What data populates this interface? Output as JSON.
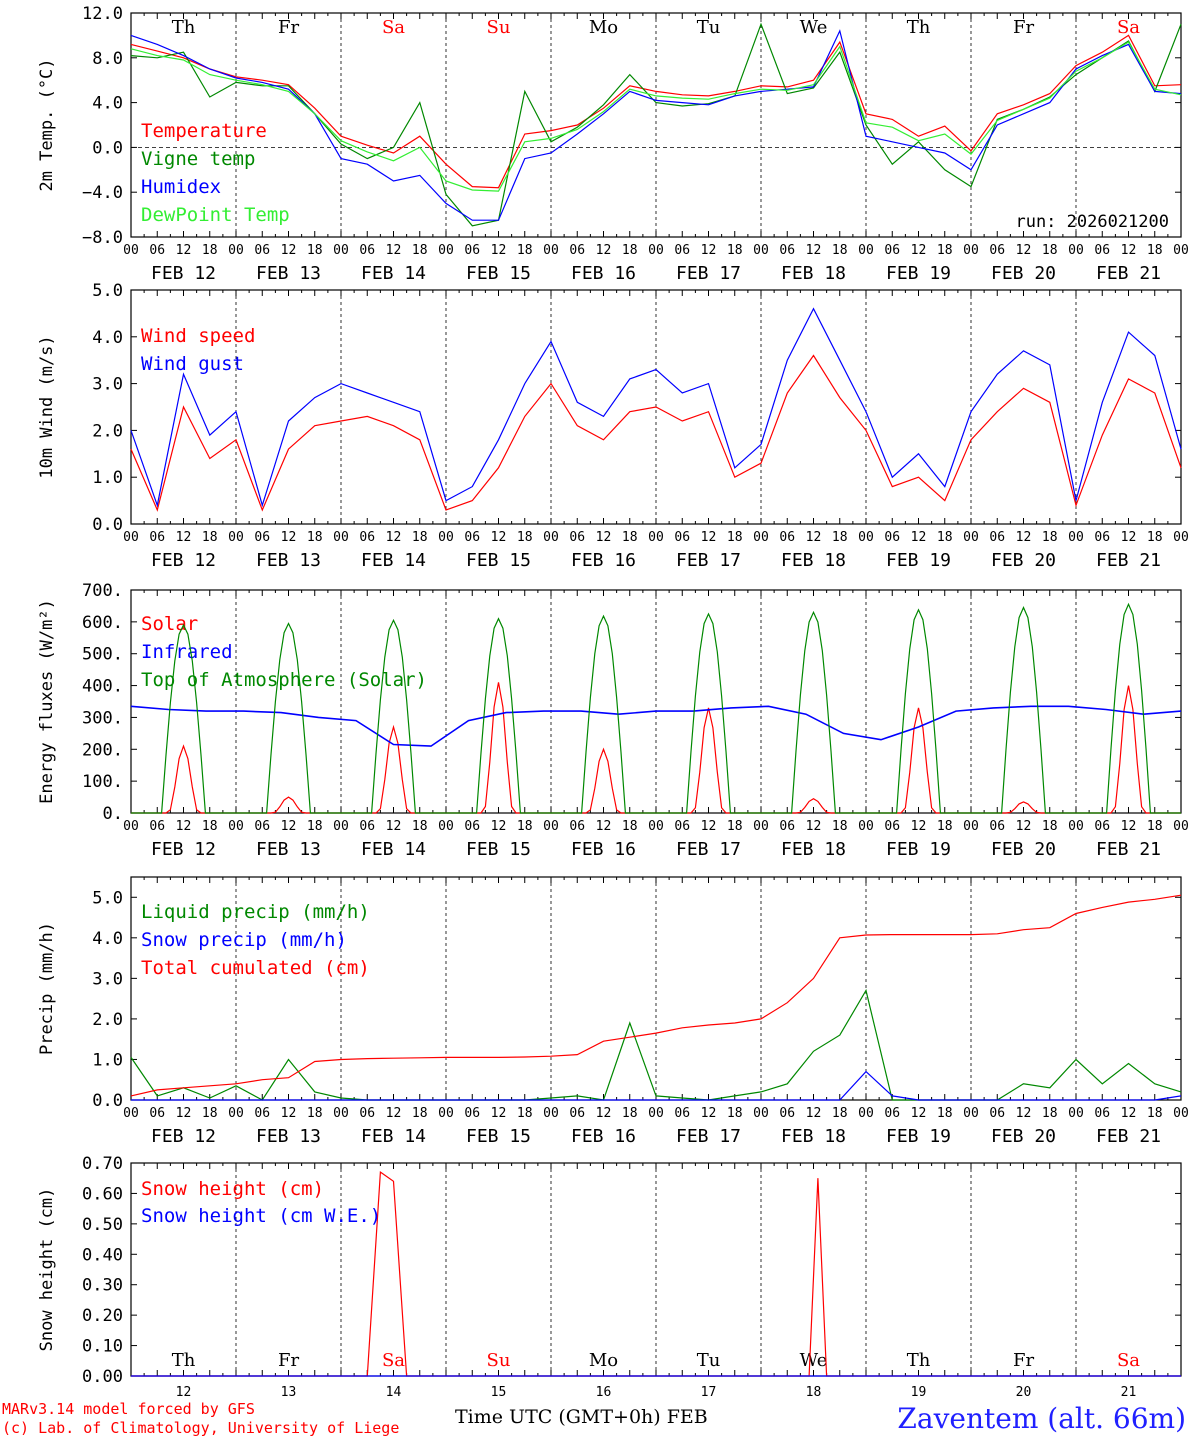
{
  "station": "Zaventem (alt. 66m)",
  "credit": [
    "MARv3.14 model forced by GFS",
    "(c) Lab. of Climatology, University of Liege"
  ],
  "run_label": "run: 2026021200",
  "x_axis_title": "Time UTC (GMT+0h) FEB",
  "days": [
    {
      "label": "Th",
      "date": "FEB 12",
      "num": "12",
      "weekend": false
    },
    {
      "label": "Fr",
      "date": "FEB 13",
      "num": "13",
      "weekend": false
    },
    {
      "label": "Sa",
      "date": "FEB 14",
      "num": "14",
      "weekend": true
    },
    {
      "label": "Su",
      "date": "FEB 15",
      "num": "15",
      "weekend": true
    },
    {
      "label": "Mo",
      "date": "FEB 16",
      "num": "16",
      "weekend": false
    },
    {
      "label": "Tu",
      "date": "FEB 17",
      "num": "17",
      "weekend": false
    },
    {
      "label": "We",
      "date": "FEB 18",
      "num": "18",
      "weekend": false
    },
    {
      "label": "Th",
      "date": "FEB 19",
      "num": "19",
      "weekend": false
    },
    {
      "label": "Fr",
      "date": "FEB 20",
      "num": "20",
      "weekend": false
    },
    {
      "label": "Sa",
      "date": "FEB 21",
      "num": "21",
      "weekend": true
    }
  ],
  "hour_ticks": [
    "00",
    "06",
    "12",
    "18"
  ],
  "colors": {
    "red": "#ff0000",
    "green": "#008800",
    "blue": "#0000ff",
    "lightgreen": "#33ee33",
    "weekend": "#ff0000"
  },
  "chart_data": [
    {
      "type": "line",
      "id": "temp",
      "ylabel": "2m Temp. (°C)",
      "ylim": [
        -8,
        12
      ],
      "yticks": [
        12,
        8,
        4,
        0,
        -4,
        -8
      ],
      "ytick_labels": [
        "12.0",
        "8.0",
        "4.0",
        "0.0",
        "−4.0",
        "−8.0"
      ],
      "zero_line": true,
      "x_hours": [
        0,
        6,
        12,
        18,
        24,
        30,
        36,
        42,
        48,
        54,
        60,
        66,
        72,
        78,
        84,
        90,
        96,
        102,
        108,
        114,
        120,
        126,
        132,
        138,
        144,
        150,
        156,
        162,
        168,
        174,
        180,
        186,
        192,
        198,
        204,
        210,
        216,
        222,
        228,
        234,
        240
      ],
      "series": [
        {
          "name": "Temperature",
          "color": "red",
          "values": [
            9.2,
            8.6,
            8.0,
            7.0,
            6.3,
            6.0,
            5.6,
            3.5,
            1.0,
            0.2,
            -0.5,
            1.0,
            -1.5,
            -3.5,
            -3.6,
            1.2,
            1.5,
            2.0,
            3.5,
            5.5,
            5.0,
            4.7,
            4.6,
            5.0,
            5.5,
            5.4,
            6.0,
            9.4,
            3.0,
            2.5,
            1.0,
            1.9,
            -0.3,
            3.0,
            3.8,
            4.8,
            7.3,
            8.5,
            10.0,
            5.5,
            5.6
          ]
        },
        {
          "name": "Vigne temp",
          "color": "green",
          "values": [
            8.2,
            8.0,
            8.5,
            4.5,
            5.8,
            5.5,
            5.5,
            3.0,
            0.3,
            -1.0,
            0.0,
            4.0,
            -4.2,
            -7.0,
            -6.5,
            5.0,
            0.5,
            1.8,
            3.8,
            6.5,
            4.0,
            3.7,
            3.9,
            4.6,
            11.0,
            4.8,
            5.3,
            8.5,
            2.0,
            -1.5,
            0.5,
            -2.0,
            -3.5,
            2.5,
            3.4,
            4.5,
            6.5,
            8.0,
            9.5,
            5.0,
            11.0
          ]
        },
        {
          "name": "Humidex",
          "color": "blue",
          "values": [
            10.0,
            9.2,
            8.2,
            7.0,
            6.2,
            5.8,
            5.2,
            3.0,
            -1.0,
            -1.5,
            -3.0,
            -2.5,
            -5.0,
            -6.5,
            -6.5,
            -1.0,
            -0.5,
            1.2,
            3.0,
            5.0,
            4.2,
            4.0,
            3.8,
            4.6,
            5.0,
            5.2,
            5.4,
            10.4,
            1.0,
            0.5,
            0.0,
            -0.5,
            -2.0,
            2.0,
            3.0,
            4.0,
            7.0,
            8.2,
            9.2,
            5.0,
            4.8
          ]
        },
        {
          "name": "DewPoint Temp",
          "color": "lightgreen",
          "values": [
            8.8,
            8.2,
            7.8,
            6.5,
            6.0,
            5.6,
            5.0,
            3.0,
            0.6,
            -0.4,
            -1.2,
            0.0,
            -3.0,
            -3.8,
            -3.9,
            0.5,
            0.8,
            1.6,
            3.2,
            5.2,
            4.6,
            4.4,
            4.3,
            4.8,
            5.2,
            5.1,
            5.6,
            9.0,
            2.2,
            1.8,
            0.6,
            1.2,
            -0.6,
            2.4,
            3.4,
            4.4,
            6.8,
            8.0,
            9.4,
            5.2,
            4.7
          ]
        }
      ]
    },
    {
      "type": "line",
      "id": "wind",
      "ylabel": "10m Wind (m/s)",
      "ylim": [
        0,
        5
      ],
      "yticks": [
        5,
        4,
        3,
        2,
        1,
        0
      ],
      "ytick_labels": [
        "5.0",
        "4.0",
        "3.0",
        "2.0",
        "1.0",
        "0.0"
      ],
      "x_hours": [
        0,
        6,
        12,
        18,
        24,
        30,
        36,
        42,
        48,
        54,
        60,
        66,
        72,
        78,
        84,
        90,
        96,
        102,
        108,
        114,
        120,
        126,
        132,
        138,
        144,
        150,
        156,
        162,
        168,
        174,
        180,
        186,
        192,
        198,
        204,
        210,
        216,
        222,
        228,
        234,
        240
      ],
      "series": [
        {
          "name": "Wind speed",
          "color": "red",
          "values": [
            1.6,
            0.3,
            2.5,
            1.4,
            1.8,
            0.3,
            1.6,
            2.1,
            2.2,
            2.3,
            2.1,
            1.8,
            0.3,
            0.5,
            1.2,
            2.3,
            3.0,
            2.1,
            1.8,
            2.4,
            2.5,
            2.2,
            2.4,
            1.0,
            1.3,
            2.8,
            3.6,
            2.7,
            2.0,
            0.8,
            1.0,
            0.5,
            1.8,
            2.4,
            2.9,
            2.6,
            0.4,
            1.9,
            3.1,
            2.8,
            1.2
          ]
        },
        {
          "name": "Wind gust",
          "color": "blue",
          "values": [
            2.0,
            0.4,
            3.2,
            1.9,
            2.4,
            0.4,
            2.2,
            2.7,
            3.0,
            2.8,
            2.6,
            2.4,
            0.5,
            0.8,
            1.8,
            3.0,
            3.9,
            2.6,
            2.3,
            3.1,
            3.3,
            2.8,
            3.0,
            1.2,
            1.7,
            3.5,
            4.6,
            3.5,
            2.4,
            1.0,
            1.5,
            0.8,
            2.4,
            3.2,
            3.7,
            3.4,
            0.5,
            2.6,
            4.1,
            3.6,
            1.6
          ]
        }
      ]
    },
    {
      "type": "line",
      "id": "energy",
      "ylabel": "Energy fluxes (W/m²)",
      "ylim": [
        0,
        700
      ],
      "yticks": [
        700,
        600,
        500,
        400,
        300,
        200,
        100,
        0
      ],
      "ytick_labels": [
        "700.",
        "600.",
        "500.",
        "400.",
        "300.",
        "200.",
        "100.",
        "0."
      ],
      "series": [
        {
          "name": "Solar",
          "color": "red",
          "peaks": [
            210,
            50,
            270,
            410,
            200,
            330,
            45,
            330,
            35,
            400
          ]
        },
        {
          "name": "Infrared",
          "color": "blue",
          "values": [
            335,
            325,
            320,
            320,
            315,
            300,
            290,
            215,
            210,
            290,
            315,
            320,
            320,
            310,
            320,
            320,
            330,
            335,
            310,
            250,
            230,
            270,
            320,
            330,
            335,
            335,
            325,
            310,
            320
          ]
        },
        {
          "name": "Top of Atmosphere (Solar)",
          "color": "green",
          "peaks": [
            590,
            595,
            605,
            610,
            618,
            625,
            630,
            638,
            645,
            655
          ]
        }
      ]
    },
    {
      "type": "line",
      "id": "precip",
      "ylabel": "Precip (mm/h)",
      "ylim": [
        0,
        5.5
      ],
      "yticks": [
        5,
        4,
        3,
        2,
        1,
        0
      ],
      "ytick_labels": [
        "5.0",
        "4.0",
        "3.0",
        "2.0",
        "1.0",
        "0.0"
      ],
      "x_hours": [
        0,
        6,
        12,
        18,
        24,
        30,
        36,
        42,
        48,
        54,
        60,
        66,
        72,
        78,
        84,
        90,
        96,
        102,
        108,
        114,
        120,
        126,
        132,
        138,
        144,
        150,
        156,
        162,
        168,
        174,
        180,
        186,
        192,
        198,
        204,
        210,
        216,
        222,
        228,
        234,
        240
      ],
      "series": [
        {
          "name": "Liquid precip (mm/h)",
          "color": "green",
          "values": [
            1.05,
            0.1,
            0.3,
            0.05,
            0.35,
            0.0,
            1.0,
            0.2,
            0.05,
            0.0,
            0.0,
            0.0,
            0.0,
            0.0,
            0.0,
            0.0,
            0.05,
            0.1,
            0.0,
            1.9,
            0.1,
            0.05,
            0.0,
            0.1,
            0.2,
            0.4,
            1.2,
            1.6,
            2.7,
            0.0,
            0.0,
            0.0,
            0.0,
            0.0,
            0.4,
            0.3,
            1.0,
            0.4,
            0.9,
            0.4,
            0.2
          ]
        },
        {
          "name": "Snow precip (mm/h)",
          "color": "blue",
          "values": [
            0,
            0,
            0,
            0,
            0,
            0,
            0,
            0,
            0,
            0,
            0,
            0,
            0,
            0,
            0,
            0,
            0,
            0,
            0,
            0,
            0,
            0,
            0,
            0,
            0,
            0,
            0,
            0,
            0.7,
            0.1,
            0,
            0,
            0,
            0,
            0,
            0,
            0,
            0,
            0,
            0,
            0.1
          ]
        },
        {
          "name": "Total cumulated (cm)",
          "color": "red",
          "values": [
            0.1,
            0.25,
            0.3,
            0.35,
            0.4,
            0.5,
            0.55,
            0.95,
            1.0,
            1.02,
            1.03,
            1.04,
            1.05,
            1.05,
            1.05,
            1.06,
            1.08,
            1.12,
            1.45,
            1.55,
            1.65,
            1.78,
            1.85,
            1.9,
            2.0,
            2.4,
            3.0,
            4.0,
            4.07,
            4.08,
            4.08,
            4.08,
            4.08,
            4.1,
            4.2,
            4.25,
            4.6,
            4.75,
            4.88,
            4.95,
            5.05
          ]
        }
      ]
    },
    {
      "type": "line",
      "id": "snow",
      "ylabel": "Snow height (cm)",
      "ylim": [
        0,
        0.7
      ],
      "yticks": [
        0.7,
        0.6,
        0.5,
        0.4,
        0.3,
        0.2,
        0.1,
        0
      ],
      "ytick_labels": [
        "0.70",
        "0.60",
        "0.50",
        "0.40",
        "0.30",
        "0.20",
        "0.10",
        "0.00"
      ],
      "series": [
        {
          "name": "Snow height (cm)",
          "color": "red",
          "points": [
            [
              0,
              0
            ],
            [
              54,
              0
            ],
            [
              57,
              0.67
            ],
            [
              60,
              0.64
            ],
            [
              63,
              0
            ],
            [
              155,
              0
            ],
            [
              157,
              0.65
            ],
            [
              159,
              0
            ],
            [
              240,
              0
            ]
          ]
        },
        {
          "name": "Snow height (cm W.E.)",
          "color": "blue",
          "points": [
            [
              0,
              0
            ],
            [
              240,
              0
            ]
          ]
        }
      ]
    }
  ]
}
